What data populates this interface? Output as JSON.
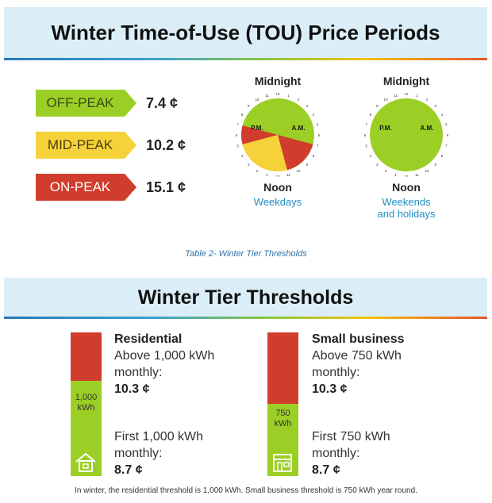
{
  "header1": {
    "title": "Winter Time-of-Use (TOU) Price Periods"
  },
  "prices": [
    {
      "label": "OFF-PEAK",
      "value": "7.4 ¢",
      "color": "#9ccf25"
    },
    {
      "label": "MID-PEAK",
      "value": "10.2 ¢",
      "color": "#f6d23a"
    },
    {
      "label": "ON-PEAK",
      "value": "15.1 ¢",
      "color": "#d13d2d"
    }
  ],
  "clocks": {
    "weekdays": {
      "top": "Midnight",
      "pm": "P.M.",
      "am": "A.M.",
      "bottom": "Noon",
      "caption": "Weekdays"
    },
    "weekends": {
      "top": "Midnight",
      "pm": "P.M.",
      "am": "A.M.",
      "bottom": "Noon",
      "caption_line1": "Weekends",
      "caption_line2": "and holidays"
    },
    "numbers": [
      "12",
      "1",
      "2",
      "3",
      "4",
      "5",
      "6",
      "7",
      "8",
      "9",
      "10",
      "11"
    ]
  },
  "caption": "Table 2- Winter Tier Thresholds",
  "header2": {
    "title": "Winter Tier Thresholds"
  },
  "residential": {
    "bar_label_1": "1,000",
    "bar_label_2": "kWh",
    "heading": "Residential",
    "above_line1": "Above 1,000 kWh",
    "above_line2": "monthly:",
    "above_value": "10.3 ¢",
    "first_line1": "First 1,000 kWh",
    "first_line2": "monthly:",
    "first_value": "8.7 ¢",
    "icon": "house-icon"
  },
  "small_business": {
    "bar_label_1": "750",
    "bar_label_2": "kWh",
    "heading": "Small business",
    "above_line1": "Above 750 kWh",
    "above_line2": "monthly:",
    "above_value": "10.3 ¢",
    "first_line1": "First 750 kWh",
    "first_line2": "monthly:",
    "first_value": "8.7 ¢",
    "icon": "storefront-icon"
  },
  "footer": "In winter, the residential threshold is 1,000 kWh. Small business threshold is 750 kWh year round.",
  "colors": {
    "off_peak": "#9ccf25",
    "mid_peak": "#f6d23a",
    "on_peak": "#d13d2d",
    "accent_blue": "#1f8fc1"
  }
}
